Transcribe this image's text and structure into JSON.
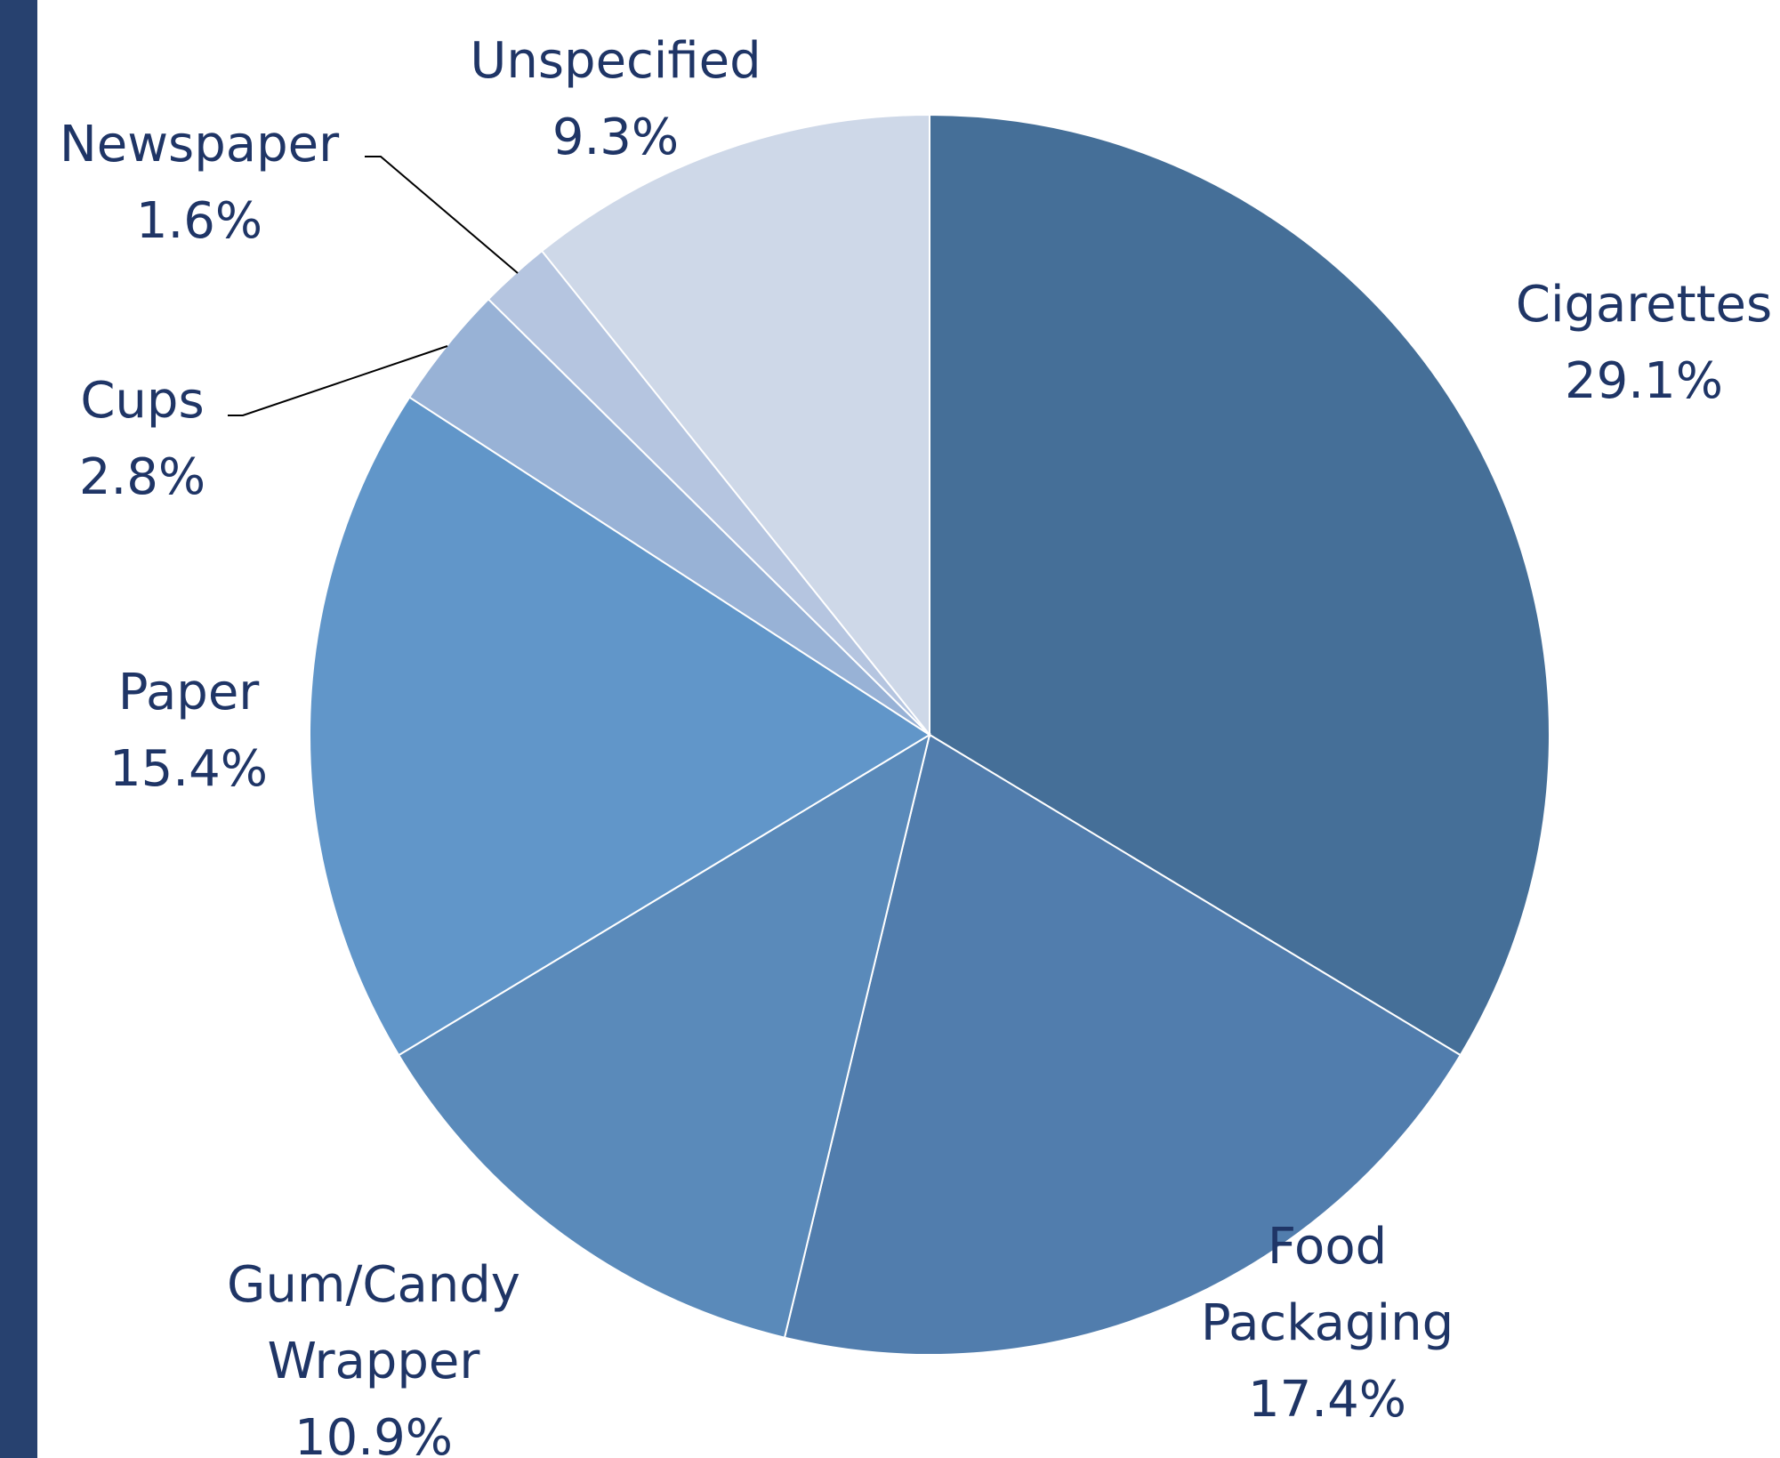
{
  "colors": {
    "accent_bar": "#27416f",
    "label_text": "#1f3566",
    "leader_line": "#000000",
    "slice_border": "#ffffff"
  },
  "chart_data": {
    "type": "pie",
    "start_angle_deg": 0,
    "direction": "clockwise",
    "legend": "none",
    "data_labels": "category name and percentage",
    "slices": [
      {
        "category": [
          "Cigarettes"
        ],
        "value": 29.1,
        "label": "29.1%",
        "color": "#456f98"
      },
      {
        "category": [
          "Food",
          "Packaging"
        ],
        "value": 17.4,
        "label": "17.4%",
        "color": "#517dad"
      },
      {
        "category": [
          "Gum/Candy",
          "Wrapper"
        ],
        "value": 10.9,
        "label": "10.9%",
        "color": "#5a8aba"
      },
      {
        "category": [
          "Paper"
        ],
        "value": 15.4,
        "label": "15.4%",
        "color": "#6196c9"
      },
      {
        "category": [
          "Cups"
        ],
        "value": 2.8,
        "label": "2.8%",
        "color": "#98b2d6"
      },
      {
        "category": [
          "Newspaper"
        ],
        "value": 1.6,
        "label": "1.6%",
        "color": "#b5c5e0"
      },
      {
        "category": [
          "Unspecified"
        ],
        "value": 9.3,
        "label": "9.3%",
        "color": "#ced8e8"
      }
    ]
  }
}
